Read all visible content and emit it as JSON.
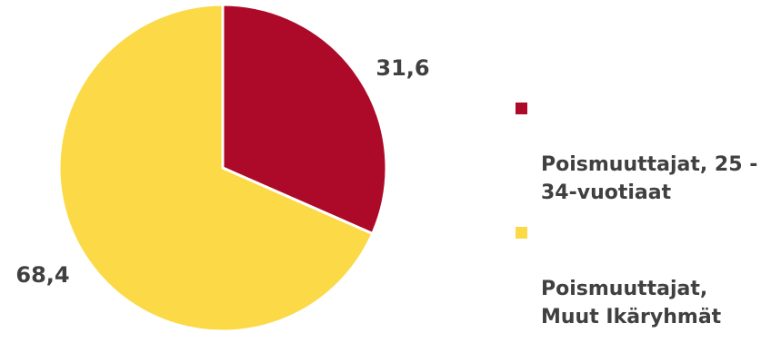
{
  "chart_data": {
    "type": "pie",
    "title": "",
    "slices": [
      {
        "label": "Poismuuttajat, 25 -\n34-vuotiaat",
        "value": 31.6,
        "value_label": "31,6",
        "color": "#AD0A29"
      },
      {
        "label": "Poismuuttajat,\nMuut Ikäryhmät",
        "value": 68.4,
        "value_label": "68,4",
        "color": "#FCD946"
      }
    ],
    "start_angle": "12 o'clock",
    "direction": "clockwise",
    "legend_position": "right"
  }
}
